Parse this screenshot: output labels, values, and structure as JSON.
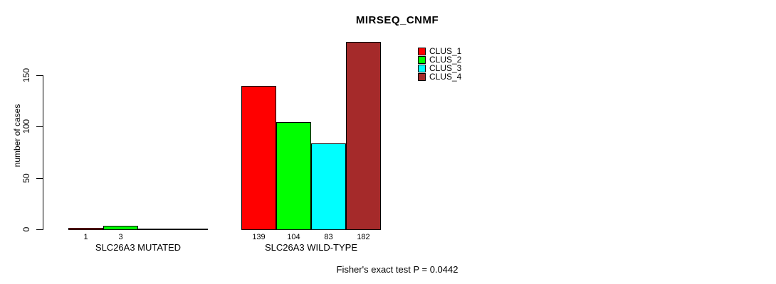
{
  "chart_data": {
    "type": "bar",
    "title": "MIRSEQ_CNMF",
    "ylabel": "number of cases",
    "xlabel": "",
    "yticks": [
      0,
      50,
      100,
      150
    ],
    "ylim": [
      0,
      185
    ],
    "grid": false,
    "legend_position": "top-right-inside",
    "legend": [
      {
        "label": "CLUS_1",
        "color": "#FF0000"
      },
      {
        "label": "CLUS_2",
        "color": "#00FF00"
      },
      {
        "label": "CLUS_3",
        "color": "#00FFFF"
      },
      {
        "label": "CLUS_4",
        "color": "#A52A2A"
      }
    ],
    "groups": [
      {
        "label": "SLC26A3 MUTATED",
        "values": [
          1,
          3,
          0,
          0
        ],
        "value_labels": [
          "1",
          "3",
          "",
          ""
        ]
      },
      {
        "label": "SLC26A3 WILD-TYPE",
        "values": [
          139,
          104,
          83,
          182
        ],
        "value_labels": [
          "139",
          "104",
          "83",
          "182"
        ]
      }
    ],
    "footer": "Fisher's exact test P = 0.0442"
  }
}
